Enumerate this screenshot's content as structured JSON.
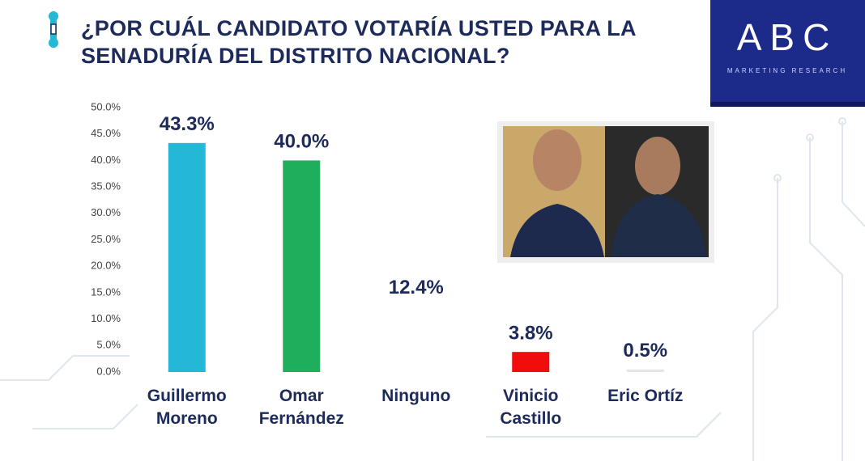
{
  "logo": {
    "name": "ABC",
    "tagline": "MARKETING RESEARCH"
  },
  "chart_data": {
    "type": "bar",
    "title": "¿POR CUÁL CANDIDATO VOTARÍA USTED PARA LA SENADURÍA DEL DISTRITO NACIONAL?",
    "categories": [
      "Guillermo Moreno",
      "Omar Fernández",
      "Ninguno",
      "Vinicio Castillo",
      "Eric Ortíz"
    ],
    "values": [
      43.3,
      40.0,
      12.4,
      3.8,
      0.5
    ],
    "value_labels": [
      "43.3%",
      "40.0%",
      "12.4%",
      "3.8%",
      "0.5%"
    ],
    "colors": [
      "#22b8d6",
      "#1faf5c",
      "#ffffff",
      "#f20d0d",
      "#e6e6e6"
    ],
    "ylim": [
      0,
      50
    ],
    "yticks": [
      {
        "value": 0,
        "label": "0.0%"
      },
      {
        "value": 5,
        "label": "5.0%"
      },
      {
        "value": 10,
        "label": "10.0%"
      },
      {
        "value": 15,
        "label": "15.0%"
      },
      {
        "value": 20,
        "label": "20.0%"
      },
      {
        "value": 25,
        "label": "25.0%"
      },
      {
        "value": 30,
        "label": "30.0%"
      },
      {
        "value": 35,
        "label": "35.0%"
      },
      {
        "value": 40,
        "label": "40.0%"
      },
      {
        "value": 45,
        "label": "45.0%"
      },
      {
        "value": 50,
        "label": "50.0%"
      }
    ],
    "grid": false
  }
}
